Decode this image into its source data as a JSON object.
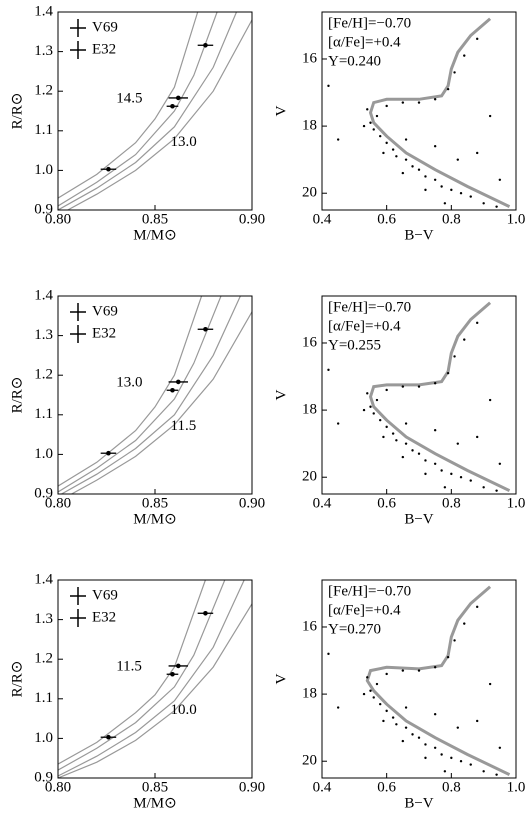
{
  "chart_data": [
    {
      "type": "errorbar",
      "xlabel": "M/M⊙",
      "ylabel": "R/R⊙",
      "xlim": [
        0.8,
        0.9
      ],
      "ylim": [
        0.9,
        1.4
      ],
      "xticks": [
        {
          "value": 0.8,
          "label": "0.80"
        },
        0.85,
        {
          "value": 0.9,
          "label": "0.90"
        }
      ],
      "yticks": [
        0.9,
        {
          "value": 1,
          "label": "1.0"
        },
        1.1,
        1.2,
        1.3,
        1.4
      ],
      "legend": "upper left",
      "series": [
        {
          "name": "V69",
          "color": "#000000",
          "x": [
            0.862,
            0.859
          ],
          "values": [
            1.183,
            1.162
          ],
          "xerr": [
            0.005,
            0.003
          ],
          "yerr": [
            0.005,
            0.005
          ]
        },
        {
          "name": "E32",
          "color": "#000000",
          "x": [
            0.876,
            0.826
          ],
          "values": [
            1.316,
            1.003
          ],
          "xerr": [
            0.004,
            0.004
          ],
          "yerr": [
            0.005,
            0.004
          ]
        }
      ],
      "curves": [
        {
          "color": "#999999",
          "x": [
            0.8,
            0.82,
            0.84,
            0.85,
            0.86,
            0.872
          ],
          "values": [
            0.93,
            0.99,
            1.07,
            1.13,
            1.21,
            1.4
          ]
        },
        {
          "color": "#999999",
          "x": [
            0.8,
            0.82,
            0.84,
            0.86,
            0.87,
            0.882
          ],
          "values": [
            0.91,
            0.97,
            1.04,
            1.15,
            1.24,
            1.4
          ]
        },
        {
          "color": "#999999",
          "x": [
            0.8,
            0.82,
            0.84,
            0.86,
            0.88,
            0.892
          ],
          "values": [
            0.9,
            0.955,
            1.02,
            1.11,
            1.26,
            1.4
          ]
        },
        {
          "color": "#999999",
          "x": [
            0.805,
            0.82,
            0.84,
            0.86,
            0.88,
            0.9
          ],
          "values": [
            0.9,
            0.94,
            1.0,
            1.08,
            1.2,
            1.38
          ]
        }
      ],
      "annotations": [
        "14.5",
        "13.0"
      ]
    },
    {
      "type": "scatter",
      "xlabel": "B−V",
      "ylabel": "V",
      "xlim": [
        0.4,
        1
      ],
      "ylim": [
        20.5,
        14.6
      ],
      "xticks": [
        0.4,
        0.6,
        0.8,
        {
          "value": 1,
          "label": "1.0"
        }
      ],
      "yticks": [
        16,
        18,
        20
      ],
      "color": "#000000",
      "x": [
        0.57,
        0.55,
        0.56,
        0.58,
        0.6,
        0.62,
        0.63,
        0.66,
        0.68,
        0.7,
        0.72,
        0.75,
        0.77,
        0.8,
        0.83,
        0.86,
        0.9,
        0.94,
        0.6,
        0.65,
        0.7,
        0.75,
        0.79,
        0.81,
        0.84,
        0.88,
        0.53,
        0.59,
        0.65,
        0.72,
        0.78,
        0.45,
        0.42,
        0.88,
        0.92,
        0.66,
        0.75,
        0.95,
        0.82,
        0.54
      ],
      "values": [
        17.7,
        17.9,
        18.1,
        18.3,
        18.5,
        18.7,
        18.9,
        19.0,
        19.2,
        19.3,
        19.5,
        19.6,
        19.8,
        19.9,
        20.0,
        20.1,
        20.3,
        20.4,
        17.4,
        17.3,
        17.3,
        17.2,
        16.9,
        16.4,
        15.9,
        15.4,
        18.0,
        18.8,
        19.4,
        19.9,
        20.3,
        18.4,
        16.8,
        18.8,
        17.7,
        18.4,
        18.6,
        19.6,
        19.0,
        17.5
      ],
      "curves": [
        {
          "color": "#999999",
          "x": [
            0.98,
            0.85,
            0.75,
            0.66,
            0.6,
            0.56,
            0.55,
            0.56,
            0.6,
            0.7,
            0.77,
            0.79,
            0.8,
            0.82,
            0.86,
            0.92
          ],
          "values": [
            20.4,
            19.8,
            19.3,
            18.8,
            18.3,
            17.9,
            17.6,
            17.3,
            17.2,
            17.2,
            17.1,
            16.8,
            16.3,
            15.8,
            15.3,
            14.8
          ]
        }
      ],
      "annotations": [
        "[Fe/H]=−0.70",
        "[α/Fe]=+0.4",
        "Y=0.240"
      ]
    },
    {
      "type": "errorbar",
      "xlabel": "M/M⊙",
      "ylabel": "R/R⊙",
      "xlim": [
        0.8,
        0.9
      ],
      "ylim": [
        0.9,
        1.4
      ],
      "xticks": [
        {
          "value": 0.8,
          "label": "0.80"
        },
        0.85,
        {
          "value": 0.9,
          "label": "0.90"
        }
      ],
      "yticks": [
        0.9,
        {
          "value": 1,
          "label": "1.0"
        },
        1.1,
        1.2,
        1.3,
        1.4
      ],
      "legend": "upper left",
      "series": [
        {
          "name": "V69",
          "color": "#000000",
          "x": [
            0.862,
            0.859
          ],
          "values": [
            1.183,
            1.162
          ],
          "xerr": [
            0.005,
            0.003
          ],
          "yerr": [
            0.005,
            0.005
          ]
        },
        {
          "name": "E32",
          "color": "#000000",
          "x": [
            0.876,
            0.826
          ],
          "values": [
            1.316,
            1.003
          ],
          "xerr": [
            0.004,
            0.004
          ],
          "yerr": [
            0.005,
            0.004
          ]
        }
      ],
      "curves": [
        {
          "color": "#999999",
          "x": [
            0.8,
            0.82,
            0.84,
            0.85,
            0.86,
            0.874
          ],
          "values": [
            0.92,
            0.98,
            1.06,
            1.12,
            1.2,
            1.4
          ]
        },
        {
          "color": "#999999",
          "x": [
            0.8,
            0.82,
            0.84,
            0.86,
            0.87,
            0.884
          ],
          "values": [
            0.905,
            0.965,
            1.035,
            1.14,
            1.23,
            1.4
          ]
        },
        {
          "color": "#999999",
          "x": [
            0.8,
            0.82,
            0.84,
            0.86,
            0.88,
            0.894
          ],
          "values": [
            0.895,
            0.95,
            1.015,
            1.1,
            1.25,
            1.4
          ]
        },
        {
          "color": "#999999",
          "x": [
            0.807,
            0.82,
            0.84,
            0.86,
            0.88,
            0.9
          ],
          "values": [
            0.9,
            0.935,
            0.995,
            1.075,
            1.19,
            1.36
          ]
        }
      ],
      "annotations": [
        "13.0",
        "11.5"
      ]
    },
    {
      "type": "scatter",
      "xlabel": "B−V",
      "ylabel": "V",
      "xlim": [
        0.4,
        1
      ],
      "ylim": [
        20.5,
        14.6
      ],
      "xticks": [
        0.4,
        0.6,
        0.8,
        {
          "value": 1,
          "label": "1.0"
        }
      ],
      "yticks": [
        16,
        18,
        20
      ],
      "color": "#000000",
      "x": [
        0.57,
        0.55,
        0.56,
        0.58,
        0.6,
        0.62,
        0.63,
        0.66,
        0.68,
        0.7,
        0.72,
        0.75,
        0.77,
        0.8,
        0.83,
        0.86,
        0.9,
        0.94,
        0.6,
        0.65,
        0.7,
        0.75,
        0.79,
        0.81,
        0.84,
        0.88,
        0.53,
        0.59,
        0.65,
        0.72,
        0.78,
        0.45,
        0.42,
        0.88,
        0.92,
        0.66,
        0.75,
        0.95,
        0.82,
        0.54
      ],
      "values": [
        17.7,
        17.9,
        18.1,
        18.3,
        18.5,
        18.7,
        18.9,
        19.0,
        19.2,
        19.3,
        19.5,
        19.6,
        19.8,
        19.9,
        20.0,
        20.1,
        20.3,
        20.4,
        17.4,
        17.3,
        17.3,
        17.2,
        16.9,
        16.4,
        15.9,
        15.4,
        18.0,
        18.8,
        19.4,
        19.9,
        20.3,
        18.4,
        16.8,
        18.8,
        17.7,
        18.4,
        18.6,
        19.6,
        19.0,
        17.5
      ],
      "curves": [
        {
          "color": "#999999",
          "x": [
            0.98,
            0.85,
            0.75,
            0.66,
            0.6,
            0.56,
            0.55,
            0.56,
            0.6,
            0.7,
            0.77,
            0.79,
            0.8,
            0.82,
            0.86,
            0.92
          ],
          "values": [
            20.4,
            19.8,
            19.3,
            18.8,
            18.3,
            17.9,
            17.6,
            17.3,
            17.25,
            17.25,
            17.15,
            16.85,
            16.3,
            15.8,
            15.3,
            14.8
          ]
        }
      ],
      "annotations": [
        "[Fe/H]=−0.70",
        "[α/Fe]=+0.4",
        "Y=0.255"
      ]
    },
    {
      "type": "errorbar",
      "xlabel": "M/M⊙",
      "ylabel": "R/R⊙",
      "xlim": [
        0.8,
        0.9
      ],
      "ylim": [
        0.9,
        1.4
      ],
      "xticks": [
        {
          "value": 0.8,
          "label": "0.80"
        },
        0.85,
        {
          "value": 0.9,
          "label": "0.90"
        }
      ],
      "yticks": [
        0.9,
        {
          "value": 1,
          "label": "1.0"
        },
        1.1,
        1.2,
        1.3,
        1.4
      ],
      "legend": "upper left",
      "series": [
        {
          "name": "V69",
          "color": "#000000",
          "x": [
            0.862,
            0.859
          ],
          "values": [
            1.183,
            1.162
          ],
          "xerr": [
            0.005,
            0.003
          ],
          "yerr": [
            0.005,
            0.005
          ]
        },
        {
          "name": "E32",
          "color": "#000000",
          "x": [
            0.876,
            0.826
          ],
          "values": [
            1.316,
            1.003
          ],
          "xerr": [
            0.004,
            0.004
          ],
          "yerr": [
            0.005,
            0.004
          ]
        }
      ],
      "curves": [
        {
          "color": "#999999",
          "x": [
            0.8,
            0.82,
            0.84,
            0.85,
            0.86,
            0.876
          ],
          "values": [
            0.935,
            0.99,
            1.065,
            1.11,
            1.18,
            1.4
          ]
        },
        {
          "color": "#999999",
          "x": [
            0.8,
            0.82,
            0.84,
            0.86,
            0.87,
            0.886
          ],
          "values": [
            0.92,
            0.975,
            1.04,
            1.13,
            1.21,
            1.4
          ]
        },
        {
          "color": "#999999",
          "x": [
            0.8,
            0.82,
            0.84,
            0.86,
            0.88,
            0.896
          ],
          "values": [
            0.905,
            0.955,
            1.015,
            1.095,
            1.23,
            1.4
          ]
        },
        {
          "color": "#999999",
          "x": [
            0.8,
            0.82,
            0.84,
            0.86,
            0.88,
            0.9
          ],
          "values": [
            0.9,
            0.94,
            0.995,
            1.07,
            1.18,
            1.34
          ]
        }
      ],
      "annotations": [
        "11.5",
        "10.0"
      ]
    },
    {
      "type": "scatter",
      "xlabel": "B−V",
      "ylabel": "V",
      "xlim": [
        0.4,
        1
      ],
      "ylim": [
        20.5,
        14.6
      ],
      "xticks": [
        0.4,
        0.6,
        0.8,
        {
          "value": 1,
          "label": "1.0"
        }
      ],
      "yticks": [
        16,
        18,
        20
      ],
      "color": "#000000",
      "x": [
        0.57,
        0.55,
        0.56,
        0.58,
        0.6,
        0.62,
        0.63,
        0.66,
        0.68,
        0.7,
        0.72,
        0.75,
        0.77,
        0.8,
        0.83,
        0.86,
        0.9,
        0.94,
        0.6,
        0.65,
        0.7,
        0.75,
        0.79,
        0.81,
        0.84,
        0.88,
        0.53,
        0.59,
        0.65,
        0.72,
        0.78,
        0.45,
        0.42,
        0.88,
        0.92,
        0.66,
        0.75,
        0.95,
        0.82,
        0.54
      ],
      "values": [
        17.7,
        17.9,
        18.1,
        18.3,
        18.5,
        18.7,
        18.9,
        19.0,
        19.2,
        19.3,
        19.5,
        19.6,
        19.8,
        19.9,
        20.0,
        20.1,
        20.3,
        20.4,
        17.4,
        17.3,
        17.3,
        17.2,
        16.9,
        16.4,
        15.9,
        15.4,
        18.0,
        18.8,
        19.4,
        19.9,
        20.3,
        18.4,
        16.8,
        18.8,
        17.7,
        18.4,
        18.6,
        19.6,
        19.0,
        17.5
      ],
      "curves": [
        {
          "color": "#999999",
          "x": [
            0.98,
            0.85,
            0.75,
            0.66,
            0.6,
            0.56,
            0.54,
            0.55,
            0.6,
            0.7,
            0.77,
            0.79,
            0.8,
            0.82,
            0.86,
            0.92
          ],
          "values": [
            20.4,
            19.8,
            19.3,
            18.8,
            18.3,
            17.9,
            17.6,
            17.3,
            17.2,
            17.25,
            17.15,
            16.85,
            16.3,
            15.8,
            15.3,
            14.8
          ]
        }
      ],
      "annotations": [
        "[Fe/H]=−0.70",
        "[α/Fe]=+0.4",
        "Y=0.270"
      ]
    }
  ]
}
